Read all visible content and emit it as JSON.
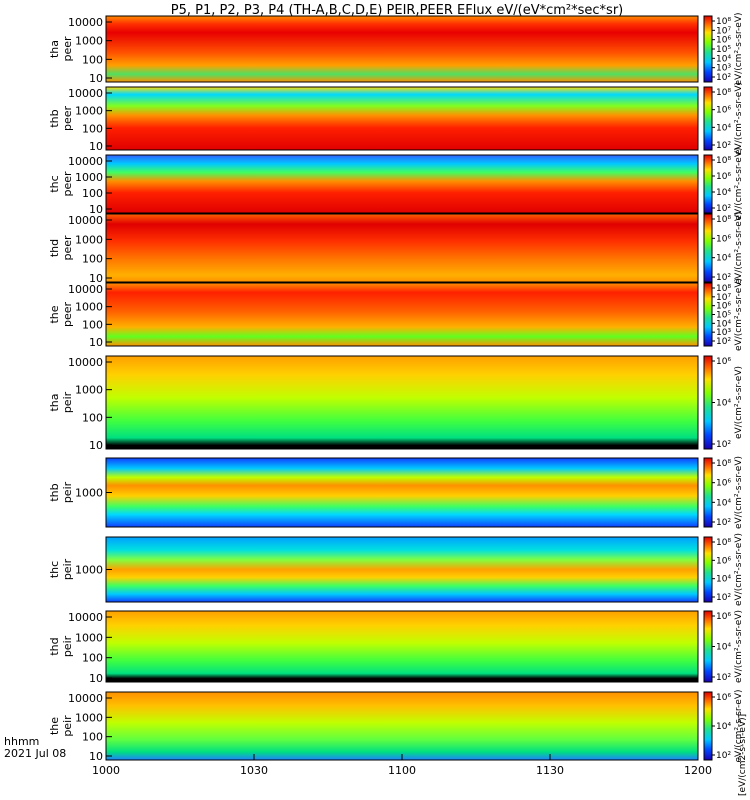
{
  "chart_data": {
    "type": "heatmap",
    "title": "P5, P1, P2, P3, P4 (TH-A,B,C,D,E) PEIR,PEER EFlux eV/(eV*cm²*sec*sr)",
    "x_ticks": [
      "1000",
      "1030",
      "1100",
      "1130",
      "1200"
    ],
    "x_range_minutes": [
      0,
      120
    ],
    "x_label_lines": [
      "hhmm",
      "2021 Jul 08"
    ],
    "colorbar_label": "[eV/(cm2-s-sr-eV)]",
    "panels": [
      {
        "name": "tha peer",
        "label_lines": [
          "tha",
          "peer"
        ],
        "y_ticks": [
          "10000",
          "1000",
          "100",
          "10"
        ],
        "cbar_ticks": [
          "10⁸",
          "10⁷",
          "10⁶",
          "10⁵",
          "10⁴",
          "10³",
          "10²"
        ],
        "cbar_label": "eV/(cm²-s-sr-eV)"
      },
      {
        "name": "thb peer",
        "label_lines": [
          "thb",
          "peer"
        ],
        "y_ticks": [
          "10000",
          "1000",
          "100",
          "10"
        ],
        "cbar_ticks": [
          "10⁸",
          "10⁶",
          "10⁴",
          "10²"
        ],
        "cbar_label": "eV/(cm²-s-sr-eV)"
      },
      {
        "name": "thc peer",
        "label_lines": [
          "thc",
          "peer"
        ],
        "y_ticks": [
          "10000",
          "1000",
          "100",
          "10"
        ],
        "cbar_ticks": [
          "10⁸",
          "10⁶",
          "10⁴",
          "10²"
        ],
        "cbar_label": "eV/(cm²-s-sr-eV)"
      },
      {
        "name": "thd peer",
        "label_lines": [
          "thd",
          "peer"
        ],
        "y_ticks": [
          "10000",
          "1000",
          "100",
          "10"
        ],
        "cbar_ticks": [
          "10⁸",
          "10⁶",
          "10⁴",
          "10²"
        ],
        "cbar_label": "eV/(cm²-s-sr-eV)"
      },
      {
        "name": "the peer",
        "label_lines": [
          "the",
          "peer"
        ],
        "y_ticks": [
          "10000",
          "1000",
          "100",
          "10"
        ],
        "cbar_ticks": [
          "10⁸",
          "10⁷",
          "10⁶",
          "10⁵",
          "10⁴",
          "10³",
          "10²"
        ],
        "cbar_label": "eV/(cm²-s-sr-eV)"
      },
      {
        "name": "tha peir",
        "label_lines": [
          "tha",
          "peir"
        ],
        "y_ticks": [
          "10000",
          "1000",
          "100",
          "10"
        ],
        "cbar_ticks": [
          "10⁶",
          "10⁴",
          "10²"
        ],
        "cbar_label": "eV/(cm²-s-sr-eV)"
      },
      {
        "name": "thb peir",
        "label_lines": [
          "thb",
          "peir"
        ],
        "y_ticks": [
          "1000"
        ],
        "cbar_ticks": [
          "10⁸",
          "10⁶",
          "10⁴",
          "10²"
        ],
        "cbar_label": "eV/(cm²-s-sr-eV)"
      },
      {
        "name": "thc peir",
        "label_lines": [
          "thc",
          "peir"
        ],
        "y_ticks": [
          "1000"
        ],
        "cbar_ticks": [
          "10⁸",
          "10⁶",
          "10⁴",
          "10²"
        ],
        "cbar_label": "eV/(cm²-s-sr-eV)"
      },
      {
        "name": "thd peir",
        "label_lines": [
          "thd",
          "peir"
        ],
        "y_ticks": [
          "10000",
          "1000",
          "100",
          "10"
        ],
        "cbar_ticks": [
          "10⁶",
          "10⁴",
          "10²"
        ],
        "cbar_label": "eV/(cm²-s-sr-eV)"
      },
      {
        "name": "the peir",
        "label_lines": [
          "the",
          "peir"
        ],
        "y_ticks": [
          "10000",
          "1000",
          "100",
          "10"
        ],
        "cbar_ticks": [
          "10⁶",
          "10⁴",
          "10²"
        ],
        "cbar_label": "eV/(cm²-s-sr-eV)"
      }
    ]
  }
}
